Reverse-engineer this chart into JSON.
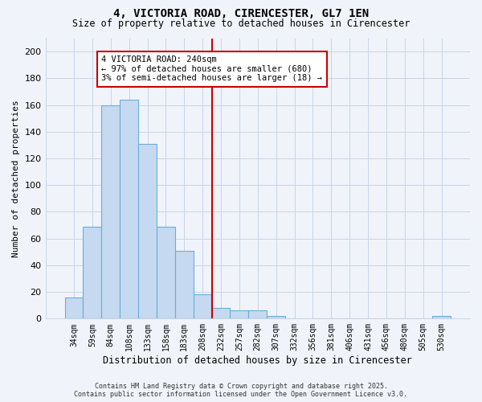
{
  "title": "4, VICTORIA ROAD, CIRENCESTER, GL7 1EN",
  "subtitle": "Size of property relative to detached houses in Cirencester",
  "xlabel": "Distribution of detached houses by size in Cirencester",
  "ylabel": "Number of detached properties",
  "bar_labels": [
    "34sqm",
    "59sqm",
    "84sqm",
    "108sqm",
    "133sqm",
    "158sqm",
    "183sqm",
    "208sqm",
    "232sqm",
    "257sqm",
    "282sqm",
    "307sqm",
    "332sqm",
    "356sqm",
    "381sqm",
    "406sqm",
    "431sqm",
    "456sqm",
    "480sqm",
    "505sqm",
    "530sqm"
  ],
  "bar_values": [
    16,
    69,
    160,
    164,
    131,
    69,
    51,
    18,
    8,
    6,
    6,
    2,
    0,
    0,
    0,
    0,
    0,
    0,
    0,
    0,
    2
  ],
  "bar_color": "#c5d9f0",
  "bar_edge_color": "#6baed6",
  "vline_idx": 8,
  "vline_color": "#cc0000",
  "ylim": [
    0,
    210
  ],
  "yticks": [
    0,
    20,
    40,
    60,
    80,
    100,
    120,
    140,
    160,
    180,
    200
  ],
  "annotation_title": "4 VICTORIA ROAD: 240sqm",
  "annotation_line1": "← 97% of detached houses are smaller (680)",
  "annotation_line2": "3% of semi-detached houses are larger (18) →",
  "footer_line1": "Contains HM Land Registry data © Crown copyright and database right 2025.",
  "footer_line2": "Contains public sector information licensed under the Open Government Licence v3.0.",
  "background_color": "#f0f4fa",
  "grid_color": "#c8d4e8"
}
